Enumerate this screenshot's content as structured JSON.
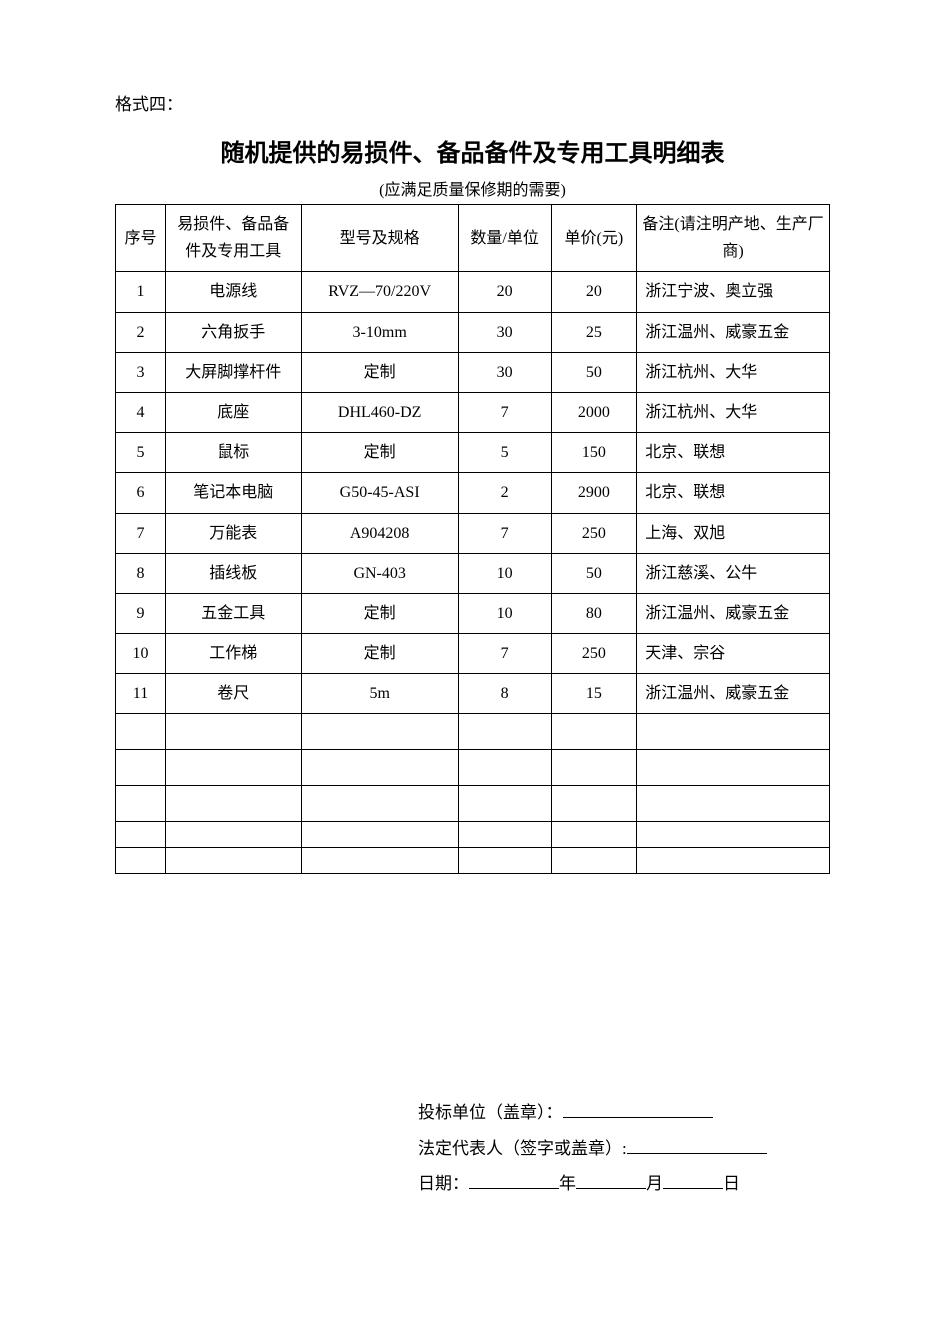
{
  "format_label": "格式四：",
  "title": "随机提供的易损件、备品备件及专用工具明细表",
  "subtitle": "(应满足质量保修期的需要)",
  "table": {
    "columns": [
      "序号",
      "易损件、备品备件及专用工具",
      "型号及规格",
      "数量/单位",
      "单价(元)",
      "备注(请注明产地、生产厂商)"
    ],
    "col_widths_pct": [
      7,
      19,
      22,
      13,
      12,
      27
    ],
    "border_color": "#000000",
    "font_size_pt": 12,
    "rows": [
      [
        "1",
        "电源线",
        "RVZ—70/220V",
        "20",
        "20",
        "浙江宁波、奥立强"
      ],
      [
        "2",
        "六角扳手",
        "3-10mm",
        "30",
        "25",
        "浙江温州、威豪五金"
      ],
      [
        "3",
        "大屏脚撑杆件",
        "定制",
        "30",
        "50",
        "浙江杭州、大华"
      ],
      [
        "4",
        "底座",
        "DHL460-DZ",
        "7",
        "2000",
        "浙江杭州、大华"
      ],
      [
        "5",
        "鼠标",
        "定制",
        "5",
        "150",
        "北京、联想"
      ],
      [
        "6",
        "笔记本电脑",
        "G50-45-ASI",
        "2",
        "2900",
        "北京、联想"
      ],
      [
        "7",
        "万能表",
        "A904208",
        "7",
        "250",
        "上海、双旭"
      ],
      [
        "8",
        "插线板",
        "GN-403",
        "10",
        "50",
        "浙江慈溪、公牛"
      ],
      [
        "9",
        "五金工具",
        "定制",
        "10",
        "80",
        "浙江温州、威豪五金"
      ],
      [
        "10",
        "工作梯",
        "定制",
        "7",
        "250",
        "天津、宗谷"
      ],
      [
        "11",
        "卷尺",
        "5m",
        "8",
        "15",
        "浙江温州、威豪五金"
      ]
    ],
    "empty_rows": 3,
    "empty_small_rows": 2
  },
  "signature": {
    "line1_prefix": "投标单位（盖章）：",
    "line2_prefix": "法定代表人（签字或盖章）:",
    "line3_date_label": "日期：",
    "year_char": "年",
    "month_char": "月",
    "day_char": "日"
  },
  "style": {
    "background_color": "#ffffff",
    "text_color": "#000000"
  }
}
